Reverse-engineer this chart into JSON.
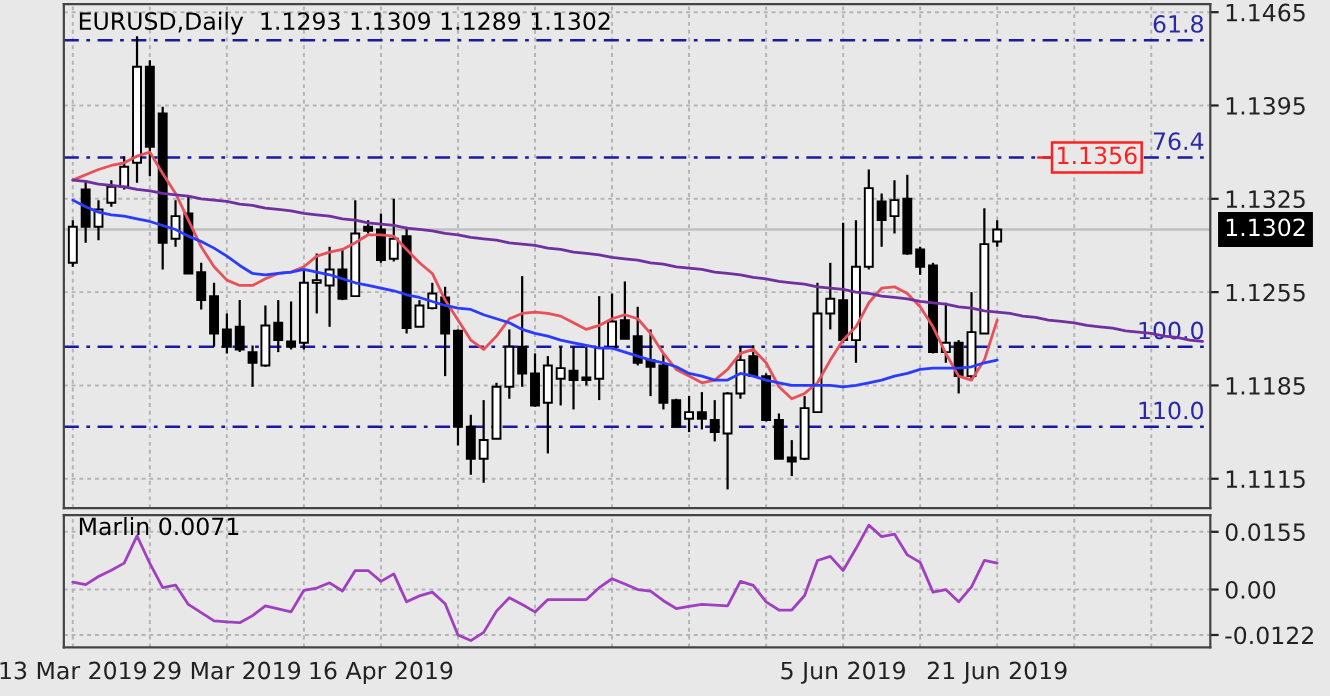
{
  "chart_data": [
    {
      "type": "candlestick",
      "title": "EURUSD,Daily  1.1293 1.1309 1.1289 1.1302",
      "categories": [
        "13 Mar 2019",
        null,
        null,
        null,
        null,
        null,
        null,
        null,
        null,
        null,
        null,
        null,
        "29 Mar 2019",
        null,
        null,
        null,
        null,
        null,
        null,
        null,
        null,
        null,
        null,
        null,
        "16 Apr 2019",
        null,
        null,
        null,
        null,
        null,
        null,
        null,
        null,
        null,
        null,
        null,
        null,
        null,
        null,
        null,
        null,
        null,
        null,
        null,
        null,
        null,
        null,
        null,
        null,
        null,
        null,
        null,
        null,
        null,
        null,
        null,
        null,
        null,
        null,
        null,
        "5 Jun 2019",
        null,
        null,
        null,
        null,
        null,
        null,
        null,
        null,
        null,
        null,
        null,
        "21 Jun 2019",
        null,
        null,
        null,
        null,
        null,
        null,
        null,
        null,
        null,
        null,
        null,
        null,
        null,
        null,
        null,
        null
      ],
      "ohlc": [
        [
          1.1277,
          1.1309,
          1.1274,
          1.1304
        ],
        [
          1.1332,
          1.1339,
          1.1292,
          1.1304
        ],
        [
          1.1304,
          1.1324,
          1.1294,
          1.1317
        ],
        [
          1.1322,
          1.1339,
          1.1319,
          1.1334
        ],
        [
          1.1334,
          1.1357,
          1.1332,
          1.1349
        ],
        [
          1.1352,
          1.1447,
          1.1337,
          1.1424
        ],
        [
          1.1424,
          1.1429,
          1.1342,
          1.1364
        ],
        [
          1.1389,
          1.1394,
          1.1272,
          1.1292
        ],
        [
          1.1295,
          1.1324,
          1.1289,
          1.1312
        ],
        [
          1.1314,
          1.1327,
          1.1269,
          1.1269
        ],
        [
          1.127,
          1.1277,
          1.1242,
          1.1249
        ],
        [
          1.1252,
          1.1262,
          1.1214,
          1.1224
        ],
        [
          1.1227,
          1.1239,
          1.1209,
          1.1214
        ],
        [
          1.1229,
          1.1249,
          1.121,
          1.1212
        ],
        [
          1.121,
          1.1215,
          1.1184,
          1.1202
        ],
        [
          1.12,
          1.1245,
          1.1199,
          1.123
        ],
        [
          1.1232,
          1.1249,
          1.121,
          1.1219
        ],
        [
          1.1218,
          1.1248,
          1.1212,
          1.1214
        ],
        [
          1.1217,
          1.1272,
          1.1212,
          1.1262
        ],
        [
          1.1262,
          1.1284,
          1.1239,
          1.1264
        ],
        [
          1.126,
          1.1289,
          1.1229,
          1.1272
        ],
        [
          1.1272,
          1.1287,
          1.1249,
          1.125
        ],
        [
          1.1252,
          1.1324,
          1.1252,
          1.1299
        ],
        [
          1.1304,
          1.1309,
          1.1299,
          1.1301
        ],
        [
          1.1302,
          1.1314,
          1.1277,
          1.1279
        ],
        [
          1.128,
          1.1325,
          1.1278,
          1.1295
        ],
        [
          1.1297,
          1.1304,
          1.1224,
          1.1228
        ],
        [
          1.1229,
          1.1249,
          1.1229,
          1.1245
        ],
        [
          1.1243,
          1.1262,
          1.1242,
          1.1254
        ],
        [
          1.1251,
          1.1259,
          1.1192,
          1.1224
        ],
        [
          1.1226,
          1.1227,
          1.114,
          1.1154
        ],
        [
          1.1154,
          1.1163,
          1.1118,
          1.113
        ],
        [
          1.113,
          1.1174,
          1.1112,
          1.1144
        ],
        [
          1.1145,
          1.1187,
          1.1145,
          1.1184
        ],
        [
          1.1184,
          1.1227,
          1.1175,
          1.1214
        ],
        [
          1.1214,
          1.1267,
          1.1184,
          1.1194
        ],
        [
          1.1194,
          1.1209,
          1.1169,
          1.117
        ],
        [
          1.1172,
          1.1207,
          1.1134,
          1.12
        ],
        [
          1.119,
          1.1214,
          1.117,
          1.1198
        ],
        [
          1.1196,
          1.1214,
          1.1167,
          1.1189
        ],
        [
          1.1191,
          1.1214,
          1.1185,
          1.1189
        ],
        [
          1.119,
          1.1252,
          1.1174,
          1.1213
        ],
        [
          1.1214,
          1.1254,
          1.1214,
          1.1233
        ],
        [
          1.1234,
          1.1263,
          1.122,
          1.122
        ],
        [
          1.1222,
          1.1244,
          1.12,
          1.1202
        ],
        [
          1.1204,
          1.1227,
          1.1177,
          1.1199
        ],
        [
          1.12,
          1.1209,
          1.1167,
          1.1172
        ],
        [
          1.1174,
          1.1175,
          1.1154,
          1.1154
        ],
        [
          1.116,
          1.1177,
          1.115,
          1.1165
        ],
        [
          1.1165,
          1.118,
          1.1152,
          1.116
        ],
        [
          1.1159,
          1.1174,
          1.1143,
          1.115
        ],
        [
          1.1149,
          1.118,
          1.1107,
          1.1179
        ],
        [
          1.1179,
          1.1214,
          1.1175,
          1.1204
        ],
        [
          1.1207,
          1.1215,
          1.1192,
          1.1192
        ],
        [
          1.1192,
          1.1194,
          1.1158,
          1.1159
        ],
        [
          1.1159,
          1.1164,
          1.113,
          1.113
        ],
        [
          1.1131,
          1.1144,
          1.1117,
          1.1128
        ],
        [
          1.113,
          1.1177,
          1.1129,
          1.1168
        ],
        [
          1.1165,
          1.1262,
          1.1165,
          1.1239
        ],
        [
          1.1239,
          1.1277,
          1.1227,
          1.125
        ],
        [
          1.1249,
          1.1307,
          1.1217,
          1.1219
        ],
        [
          1.1219,
          1.1309,
          1.1202,
          1.1274
        ],
        [
          1.1274,
          1.1347,
          1.1272,
          1.1333
        ],
        [
          1.1323,
          1.1329,
          1.1289,
          1.1309
        ],
        [
          1.1312,
          1.1339,
          1.1299,
          1.1324
        ],
        [
          1.1325,
          1.1343,
          1.1283,
          1.1284
        ],
        [
          1.1287,
          1.1289,
          1.1268,
          1.1274
        ],
        [
          1.1275,
          1.1277,
          1.1209,
          1.121
        ],
        [
          1.121,
          1.1247,
          1.1202,
          1.1217
        ],
        [
          1.1217,
          1.1219,
          1.1179,
          1.1192
        ],
        [
          1.1192,
          1.1255,
          1.1189,
          1.1225
        ],
        [
          1.1224,
          1.1318,
          1.1224,
          1.1291
        ],
        [
          1.1293,
          1.1309,
          1.1289,
          1.1302
        ],
        null,
        null,
        null,
        null,
        null,
        null,
        null,
        null,
        null,
        null,
        null,
        null,
        null,
        null,
        null,
        null
      ],
      "series": [
        {
          "type": "line",
          "color": "#e8505a",
          "values": [
            1.1339,
            1.1343,
            1.1347,
            1.135,
            1.1352,
            1.1357,
            1.136,
            1.1344,
            1.1329,
            1.1309,
            1.1289,
            1.1274,
            1.1264,
            1.126,
            1.126,
            1.1265,
            1.1269,
            1.127,
            1.1274,
            1.1282,
            1.1285,
            1.1287,
            1.1292,
            1.1298,
            1.1298,
            1.1297,
            1.1287,
            1.1277,
            1.1269,
            1.1249,
            1.1234,
            1.1219,
            1.1212,
            1.1222,
            1.1235,
            1.1239,
            1.124,
            1.1239,
            1.1237,
            1.1232,
            1.1227,
            1.123,
            1.1235,
            1.1238,
            1.1235,
            1.1224,
            1.1209,
            1.1197,
            1.1192,
            1.1187,
            1.1189,
            1.1197,
            1.1209,
            1.1212,
            1.1202,
            1.1184,
            1.1175,
            1.1179,
            1.1187,
            1.1204,
            1.1219,
            1.1229,
            1.1247,
            1.1258,
            1.1259,
            1.1254,
            1.1244,
            1.1229,
            1.1209,
            1.1192,
            1.1189,
            1.1204,
            1.1234,
            null,
            null,
            null,
            null,
            null,
            null,
            null,
            null,
            null,
            null,
            null,
            null,
            null,
            null,
            null,
            null
          ]
        },
        {
          "type": "line",
          "color": "#2a3cff",
          "values": [
            1.1324,
            1.1319,
            1.1315,
            1.1313,
            1.1312,
            1.131,
            1.1308,
            1.1305,
            1.1302,
            1.1297,
            1.1293,
            1.1288,
            1.1282,
            1.1275,
            1.1269,
            1.1268,
            1.1269,
            1.127,
            1.1272,
            1.127,
            1.1268,
            1.1265,
            1.1262,
            1.126,
            1.1258,
            1.1256,
            1.1253,
            1.1251,
            1.1248,
            1.1245,
            1.1243,
            1.1242,
            1.1238,
            1.1235,
            1.1232,
            1.1227,
            1.1224,
            1.1222,
            1.1219,
            1.1217,
            1.1215,
            1.1213,
            1.1213,
            1.121,
            1.1207,
            1.1204,
            1.1202,
            1.1199,
            1.1194,
            1.1192,
            1.1189,
            1.1189,
            1.1194,
            1.1192,
            1.1189,
            1.1187,
            1.1185,
            1.1185,
            1.1185,
            1.1185,
            1.1184,
            1.1185,
            1.1187,
            1.1189,
            1.1192,
            1.1194,
            1.1197,
            1.1198,
            1.1198,
            1.1198,
            1.1199,
            1.1202,
            1.1204,
            null,
            null,
            null,
            null,
            null,
            null,
            null,
            null,
            null,
            null,
            null,
            null,
            null,
            null,
            null,
            null
          ]
        },
        {
          "type": "line",
          "color": "#7030a0",
          "values": [
            1.1339,
            1.1338,
            1.1336,
            1.1335,
            1.1334,
            1.1332,
            1.1331,
            1.1329,
            1.1328,
            1.1327,
            1.1325,
            1.1324,
            1.1323,
            1.1321,
            1.132,
            1.1318,
            1.1317,
            1.1316,
            1.1314,
            1.1313,
            1.1312,
            1.131,
            1.1309,
            1.1307,
            1.1306,
            1.1305,
            1.1303,
            1.1302,
            1.1301,
            1.1299,
            1.1298,
            1.1296,
            1.1295,
            1.1294,
            1.1292,
            1.1291,
            1.129,
            1.1288,
            1.1287,
            1.1285,
            1.1284,
            1.1283,
            1.1281,
            1.128,
            1.1279,
            1.1277,
            1.1276,
            1.1274,
            1.1273,
            1.1272,
            1.127,
            1.1269,
            1.1268,
            1.1266,
            1.1265,
            1.1263,
            1.1262,
            1.1261,
            1.1259,
            1.1258,
            1.1257,
            1.1255,
            1.1254,
            1.1252,
            1.1251,
            1.125,
            1.1248,
            1.1247,
            1.1246,
            1.1244,
            1.1243,
            1.1241,
            1.124,
            1.1239,
            1.1237,
            1.1236,
            1.1234,
            1.1233,
            1.1232,
            1.123,
            1.1229,
            1.1228,
            1.1226,
            1.1225,
            1.1224,
            1.1222,
            1.1221,
            1.1219,
            1.1218
          ]
        }
      ],
      "ref_lines": [
        {
          "axis": "y",
          "value": 1.1444,
          "color": "#1a1aa0",
          "line_style": "dashed"
        },
        {
          "axis": "y",
          "value": 1.1356,
          "label": "1.1356",
          "color": "#1a1aa0",
          "line_style": "dashed"
        },
        {
          "axis": "y",
          "value": 1.1214,
          "color": "#1a1aa0",
          "line_style": "dashed"
        },
        {
          "axis": "y",
          "value": 1.1154,
          "color": "#1a1aa0",
          "line_style": "dashed"
        },
        {
          "axis": "y",
          "value": 1.1302,
          "label": "1.1302",
          "color": "#c0c0c0",
          "line_style": "solid"
        }
      ],
      "annotations": [
        {
          "text": "61.8",
          "y": 1.1444
        },
        {
          "text": "76.4",
          "y": 1.1356
        },
        {
          "text": "100.0",
          "y": 1.1214
        },
        {
          "text": "110.0",
          "y": 1.1154
        }
      ],
      "ylim": [
        1.1093,
        1.1471
      ],
      "yticks": [
        1.1115,
        1.1185,
        1.1255,
        1.1325,
        1.1395,
        1.1465
      ],
      "grid": true
    },
    {
      "type": "line",
      "title": "Marlin 0.0071",
      "categories": [
        null,
        null,
        null,
        null,
        null,
        null,
        null,
        null,
        null,
        null,
        null,
        null,
        null,
        null,
        null,
        null,
        null,
        null,
        null,
        null,
        null,
        null,
        null,
        null,
        null,
        null,
        null,
        null,
        null,
        null,
        null,
        null,
        null,
        null,
        null,
        null,
        null,
        null,
        null,
        null,
        null,
        null,
        null,
        null,
        null,
        null,
        null,
        null,
        null,
        null,
        null,
        null,
        null,
        null,
        null,
        null,
        null,
        null,
        null,
        null,
        null,
        null,
        null,
        null,
        null,
        null,
        null,
        null,
        null,
        null,
        null,
        null,
        null,
        null,
        null,
        null,
        null,
        null,
        null,
        null,
        null,
        null,
        null,
        null,
        null,
        null,
        null,
        null,
        null
      ],
      "series": [
        {
          "color": "#a040c0",
          "values": [
            0.002,
            0.0013,
            0.0035,
            0.0052,
            0.0071,
            0.0144,
            0.007,
            0.0005,
            0.0012,
            -0.004,
            -0.0062,
            -0.0084,
            -0.0087,
            -0.0089,
            -0.007,
            -0.0044,
            -0.0052,
            -0.006,
            -0.0002,
            0.0004,
            0.0018,
            -0.0004,
            0.0051,
            0.0051,
            0.0022,
            0.0042,
            -0.0033,
            -0.0017,
            -0.0007,
            -0.0038,
            -0.0122,
            -0.0137,
            -0.0115,
            -0.0058,
            -0.0022,
            -0.004,
            -0.006,
            -0.0027,
            -0.0027,
            -0.0027,
            -0.0027,
            0.0005,
            0.0029,
            0.0015,
            0.0,
            -0.0004,
            -0.003,
            -0.0051,
            -0.0045,
            -0.004,
            -0.0042,
            -0.0044,
            0.0022,
            0.0011,
            -0.0033,
            -0.0055,
            -0.0055,
            -0.0016,
            0.0078,
            0.0089,
            0.0051,
            0.011,
            0.0173,
            0.0142,
            0.0149,
            0.0093,
            0.0073,
            -0.0007,
            0.0,
            -0.0033,
            0.0007,
            0.0078,
            0.0071,
            null,
            null,
            null,
            null,
            null,
            null,
            null,
            null,
            null,
            null,
            null,
            null,
            null,
            null,
            null,
            null
          ]
        }
      ],
      "ylim": [
        -0.0155,
        0.02
      ],
      "yticks": [
        0.0155,
        {
          "value": 0,
          "label": "0.00"
        },
        -0.0122
      ],
      "grid": true
    }
  ]
}
